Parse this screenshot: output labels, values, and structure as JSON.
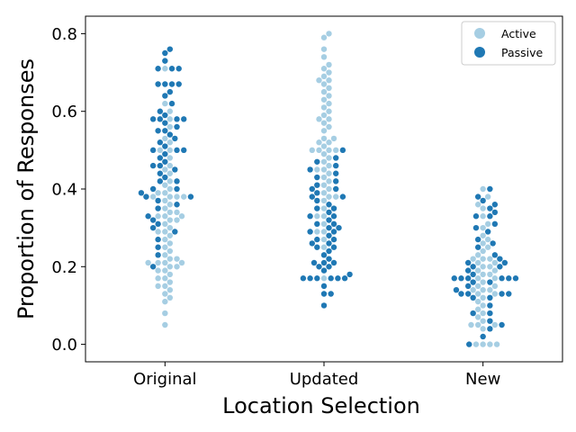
{
  "chart_data": {
    "type": "swarm",
    "xlabel": "Location Selection",
    "ylabel": "Proportion of Responses",
    "categories": [
      "Original",
      "Updated",
      "New"
    ],
    "ylim": [
      -0.045,
      0.845
    ],
    "yticks": [
      0.0,
      0.2,
      0.4,
      0.6,
      0.8
    ],
    "ytick_labels": [
      "0.0",
      "0.2",
      "0.4",
      "0.6",
      "0.8"
    ],
    "legend": {
      "placement": "top-right",
      "entries": [
        "Active",
        "Passive"
      ]
    },
    "series": [
      {
        "name": "Active",
        "color": "#a6cee3",
        "values": [
          [
            0.05,
            0.08,
            0.11,
            0.12,
            0.13,
            0.14,
            0.15,
            0.15,
            0.16,
            0.17,
            0.17,
            0.18,
            0.19,
            0.19,
            0.2,
            0.2,
            0.21,
            0.21,
            0.21,
            0.21,
            0.22,
            0.22,
            0.23,
            0.24,
            0.25,
            0.26,
            0.27,
            0.28,
            0.29,
            0.29,
            0.3,
            0.31,
            0.32,
            0.32,
            0.33,
            0.33,
            0.33,
            0.34,
            0.34,
            0.35,
            0.36,
            0.37,
            0.38,
            0.38,
            0.38,
            0.38,
            0.39,
            0.39,
            0.4,
            0.41,
            0.42,
            0.44,
            0.45,
            0.46,
            0.48,
            0.5,
            0.5,
            0.52,
            0.53,
            0.56,
            0.58,
            0.6,
            0.62,
            0.71
          ],
          [
            0.17,
            0.25,
            0.27,
            0.29,
            0.29,
            0.31,
            0.33,
            0.33,
            0.35,
            0.37,
            0.38,
            0.38,
            0.39,
            0.4,
            0.41,
            0.42,
            0.43,
            0.44,
            0.45,
            0.45,
            0.46,
            0.47,
            0.48,
            0.49,
            0.5,
            0.5,
            0.5,
            0.5,
            0.51,
            0.52,
            0.52,
            0.53,
            0.53,
            0.55,
            0.56,
            0.57,
            0.58,
            0.58,
            0.59,
            0.6,
            0.61,
            0.62,
            0.63,
            0.64,
            0.65,
            0.66,
            0.67,
            0.68,
            0.68,
            0.69,
            0.7,
            0.71,
            0.72,
            0.74,
            0.76,
            0.79,
            0.8
          ],
          [
            0.0,
            0.0,
            0.0,
            0.0,
            0.04,
            0.05,
            0.05,
            0.05,
            0.06,
            0.07,
            0.08,
            0.09,
            0.1,
            0.11,
            0.12,
            0.13,
            0.13,
            0.14,
            0.14,
            0.14,
            0.15,
            0.15,
            0.16,
            0.17,
            0.17,
            0.18,
            0.18,
            0.19,
            0.19,
            0.2,
            0.2,
            0.21,
            0.21,
            0.22,
            0.22,
            0.22,
            0.23,
            0.24,
            0.25,
            0.26,
            0.27,
            0.28,
            0.3,
            0.31,
            0.33,
            0.35,
            0.36,
            0.38,
            0.4
          ]
        ]
      },
      {
        "name": "Passive",
        "color": "#1f78b4",
        "values": [
          [
            0.2,
            0.23,
            0.25,
            0.27,
            0.29,
            0.3,
            0.31,
            0.32,
            0.33,
            0.35,
            0.36,
            0.37,
            0.38,
            0.38,
            0.39,
            0.4,
            0.4,
            0.42,
            0.42,
            0.43,
            0.44,
            0.45,
            0.46,
            0.46,
            0.47,
            0.48,
            0.49,
            0.5,
            0.5,
            0.5,
            0.51,
            0.52,
            0.53,
            0.54,
            0.55,
            0.55,
            0.56,
            0.57,
            0.58,
            0.58,
            0.58,
            0.58,
            0.59,
            0.6,
            0.62,
            0.64,
            0.65,
            0.67,
            0.67,
            0.67,
            0.67,
            0.71,
            0.71,
            0.71,
            0.73,
            0.75,
            0.76
          ],
          [
            0.1,
            0.13,
            0.13,
            0.15,
            0.17,
            0.17,
            0.17,
            0.17,
            0.17,
            0.17,
            0.18,
            0.19,
            0.2,
            0.2,
            0.21,
            0.21,
            0.21,
            0.22,
            0.23,
            0.24,
            0.25,
            0.25,
            0.26,
            0.26,
            0.27,
            0.27,
            0.28,
            0.29,
            0.29,
            0.3,
            0.3,
            0.31,
            0.31,
            0.32,
            0.33,
            0.33,
            0.34,
            0.35,
            0.35,
            0.36,
            0.37,
            0.38,
            0.38,
            0.39,
            0.4,
            0.4,
            0.41,
            0.42,
            0.43,
            0.44,
            0.45,
            0.46,
            0.47,
            0.48,
            0.5
          ],
          [
            0.0,
            0.02,
            0.04,
            0.05,
            0.06,
            0.08,
            0.08,
            0.1,
            0.12,
            0.12,
            0.13,
            0.13,
            0.13,
            0.13,
            0.14,
            0.15,
            0.16,
            0.16,
            0.17,
            0.17,
            0.17,
            0.17,
            0.17,
            0.17,
            0.18,
            0.19,
            0.2,
            0.2,
            0.21,
            0.21,
            0.22,
            0.23,
            0.25,
            0.26,
            0.27,
            0.29,
            0.3,
            0.31,
            0.33,
            0.33,
            0.34,
            0.35,
            0.36,
            0.37,
            0.38,
            0.4
          ]
        ]
      }
    ]
  }
}
